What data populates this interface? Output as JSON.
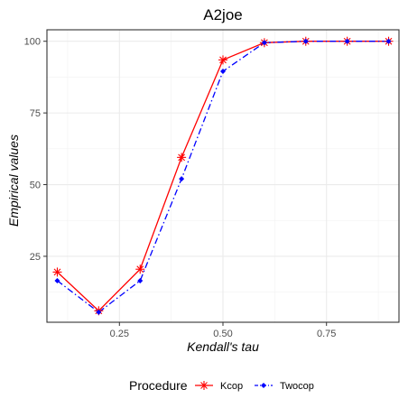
{
  "chart_data": {
    "type": "line",
    "title": "A2joe",
    "xlabel": "Kendall's tau",
    "ylabel": "Empirical values",
    "x": [
      0.1,
      0.2,
      0.3,
      0.4,
      0.5,
      0.6,
      0.7,
      0.8,
      0.9
    ],
    "xlim": [
      0.075,
      0.925
    ],
    "ylim": [
      2,
      104
    ],
    "x_ticks": [
      0.25,
      0.5,
      0.75
    ],
    "x_tick_labels": [
      "0.25",
      "0.50",
      "0.75"
    ],
    "y_ticks": [
      25,
      50,
      75,
      100
    ],
    "y_tick_labels": [
      "25",
      "50",
      "75",
      "100"
    ],
    "grid": true,
    "legend_title": "Procedure",
    "legend_position": "bottom",
    "series": [
      {
        "name": "Kcop",
        "color": "#ff0000",
        "marker": "asterisk",
        "line": "solid",
        "values": [
          19.5,
          6.0,
          20.5,
          59.5,
          93.5,
          99.5,
          100,
          100,
          100
        ]
      },
      {
        "name": "Twocop",
        "color": "#0000ff",
        "marker": "diamond",
        "line": "dashdot",
        "values": [
          16.5,
          5.5,
          16.5,
          52.0,
          89.5,
          99.5,
          100,
          100,
          100
        ]
      }
    ]
  }
}
